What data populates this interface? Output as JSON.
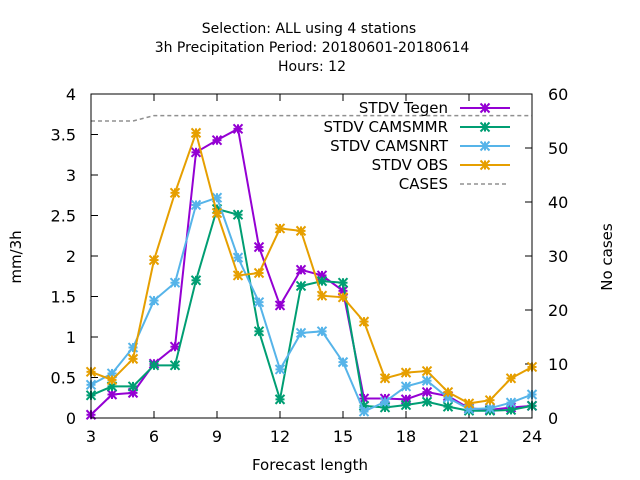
{
  "chart_data": {
    "type": "line",
    "title_lines": [
      "Selection: ALL using     4 stations",
      "3h Precipitation   Period: 20180601-20180614",
      "Hours:  12"
    ],
    "xlabel": "Forecast length",
    "ylabel": "mm/3h",
    "y2label": "No cases",
    "xlim": [
      3,
      24
    ],
    "ylim": [
      0,
      4
    ],
    "y2lim": [
      0,
      60
    ],
    "xticks": [
      3,
      6,
      9,
      12,
      15,
      18,
      21,
      24
    ],
    "yticks": [
      0,
      0.5,
      1,
      1.5,
      2,
      2.5,
      3,
      3.5,
      4
    ],
    "ytick_labels": [
      "0",
      "0.5",
      "1",
      "1.5",
      "2",
      "2.5",
      "3",
      "3.5",
      "4"
    ],
    "y2ticks": [
      0,
      10,
      20,
      30,
      40,
      50,
      60
    ],
    "legend_position": "top-right",
    "x": [
      3,
      4,
      5,
      6,
      7,
      8,
      9,
      10,
      11,
      12,
      13,
      14,
      15,
      16,
      17,
      18,
      19,
      20,
      21,
      22,
      23,
      24
    ],
    "series": [
      {
        "name": "STDV Tegen",
        "color": "#9400d3",
        "values": [
          0.04,
          0.29,
          0.31,
          0.67,
          0.88,
          3.28,
          3.43,
          3.57,
          2.11,
          1.39,
          1.83,
          1.76,
          1.57,
          0.24,
          0.24,
          0.23,
          0.32,
          0.27,
          0.12,
          0.1,
          0.13,
          0.15
        ]
      },
      {
        "name": "STDV CAMSMMR",
        "color": "#009e73",
        "values": [
          0.28,
          0.39,
          0.39,
          0.65,
          0.65,
          1.7,
          2.58,
          2.51,
          1.07,
          0.23,
          1.63,
          1.69,
          1.67,
          0.15,
          0.13,
          0.16,
          0.2,
          0.14,
          0.09,
          0.09,
          0.1,
          0.15
        ]
      },
      {
        "name": "STDV CAMSNRT",
        "color": "#56b4e9",
        "values": [
          0.41,
          0.55,
          0.87,
          1.45,
          1.67,
          2.63,
          2.72,
          1.98,
          1.43,
          0.6,
          1.05,
          1.07,
          0.69,
          0.08,
          0.2,
          0.39,
          0.46,
          0.25,
          0.11,
          0.12,
          0.19,
          0.29
        ]
      },
      {
        "name": "STDV OBS",
        "color": "#e69f00",
        "values": [
          0.57,
          0.47,
          0.73,
          1.95,
          2.78,
          3.52,
          2.53,
          1.76,
          1.79,
          2.34,
          2.31,
          1.51,
          1.49,
          1.19,
          0.49,
          0.56,
          0.58,
          0.32,
          0.18,
          0.22,
          0.49,
          0.63
        ]
      }
    ],
    "cases": {
      "name": "CASES",
      "axis": "y2",
      "color": "#909090",
      "x": [
        3,
        4,
        5,
        6,
        7,
        8,
        9,
        10,
        11,
        12,
        13,
        14,
        15,
        16,
        17,
        18,
        19,
        20,
        21,
        22,
        23,
        24
      ],
      "values": [
        55,
        55,
        55,
        56,
        56,
        56,
        56,
        56,
        56,
        56,
        56,
        56,
        56,
        56,
        56,
        56,
        56,
        56,
        56,
        56,
        56,
        56
      ]
    }
  }
}
